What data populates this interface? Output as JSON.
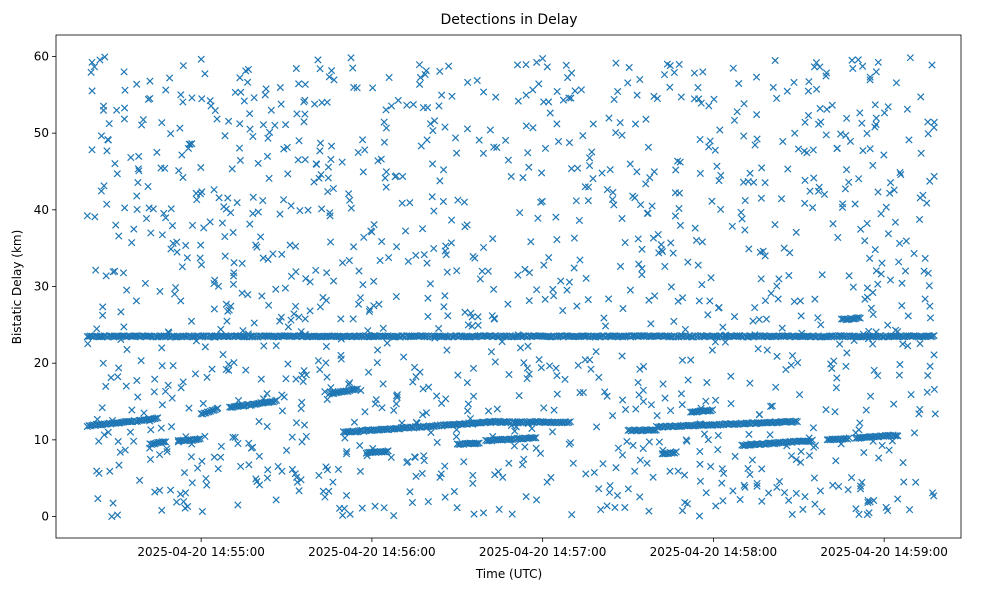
{
  "chart_data": {
    "type": "scatter",
    "title": "Detections in Delay",
    "xlabel": "Time (UTC)",
    "ylabel": "Bistatic Delay (km)",
    "marker": "x",
    "color": "#1f77b4",
    "grid": false,
    "legend": "none",
    "xlim": [
      "2025-04-20 14:54:09",
      "2025-04-20 14:59:27"
    ],
    "ylim": [
      -2.8,
      62.8
    ],
    "xticks": [
      "2025-04-20 14:55:00",
      "2025-04-20 14:56:00",
      "2025-04-20 14:57:00",
      "2025-04-20 14:58:00",
      "2025-04-20 14:59:00"
    ],
    "yticks": [
      0,
      10,
      20,
      30,
      40,
      50,
      60
    ],
    "x_start": "2025-04-20 14:54:20",
    "x_end": "2025-04-20 14:59:18",
    "tracks": [
      {
        "t0": "2025-04-20 14:54:20",
        "t1": "2025-04-20 14:59:18",
        "y0": 23.5,
        "y1": 23.5,
        "note": "constant delay line"
      },
      {
        "t0": "2025-04-20 14:54:20",
        "t1": "2025-04-20 14:54:45",
        "y0": 11.8,
        "y1": 12.8
      },
      {
        "t0": "2025-04-20 14:54:42",
        "t1": "2025-04-20 14:54:48",
        "y0": 9.4,
        "y1": 9.8
      },
      {
        "t0": "2025-04-20 14:54:52",
        "t1": "2025-04-20 14:55:00",
        "y0": 9.8,
        "y1": 10.1
      },
      {
        "t0": "2025-04-20 14:55:00",
        "t1": "2025-04-20 14:55:06",
        "y0": 13.4,
        "y1": 14.0
      },
      {
        "t0": "2025-04-20 14:55:10",
        "t1": "2025-04-20 14:55:27",
        "y0": 14.2,
        "y1": 15.1
      },
      {
        "t0": "2025-04-20 14:55:45",
        "t1": "2025-04-20 14:55:55",
        "y0": 16.0,
        "y1": 16.6
      },
      {
        "t0": "2025-04-20 14:55:50",
        "t1": "2025-04-20 14:56:45",
        "y0": 11.0,
        "y1": 12.4
      },
      {
        "t0": "2025-04-20 14:55:58",
        "t1": "2025-04-20 14:56:06",
        "y0": 8.3,
        "y1": 8.5
      },
      {
        "t0": "2025-04-20 14:56:30",
        "t1": "2025-04-20 14:56:38",
        "y0": 9.4,
        "y1": 9.6
      },
      {
        "t0": "2025-04-20 14:56:40",
        "t1": "2025-04-20 14:56:58",
        "y0": 9.9,
        "y1": 10.3
      },
      {
        "t0": "2025-04-20 14:56:45",
        "t1": "2025-04-20 14:57:10",
        "y0": 12.3,
        "y1": 12.3
      },
      {
        "t0": "2025-04-20 14:57:30",
        "t1": "2025-04-20 14:57:40",
        "y0": 11.2,
        "y1": 11.3
      },
      {
        "t0": "2025-04-20 14:57:40",
        "t1": "2025-04-20 14:58:30",
        "y0": 11.7,
        "y1": 12.4
      },
      {
        "t0": "2025-04-20 14:57:42",
        "t1": "2025-04-20 14:57:47",
        "y0": 8.2,
        "y1": 8.4
      },
      {
        "t0": "2025-04-20 14:57:52",
        "t1": "2025-04-20 14:58:00",
        "y0": 13.6,
        "y1": 13.9
      },
      {
        "t0": "2025-04-20 14:58:10",
        "t1": "2025-04-20 14:58:35",
        "y0": 9.3,
        "y1": 9.9
      },
      {
        "t0": "2025-04-20 14:58:40",
        "t1": "2025-04-20 14:58:48",
        "y0": 10.0,
        "y1": 10.2
      },
      {
        "t0": "2025-04-20 14:58:45",
        "t1": "2025-04-20 14:58:52",
        "y0": 25.7,
        "y1": 25.9
      },
      {
        "t0": "2025-04-20 14:58:50",
        "t1": "2025-04-20 14:58:56",
        "y0": 10.2,
        "y1": 10.4
      },
      {
        "t0": "2025-04-20 14:58:56",
        "t1": "2025-04-20 14:59:05",
        "y0": 10.4,
        "y1": 10.6
      }
    ],
    "clutter": {
      "y_range": [
        0,
        60
      ],
      "approx_count": 1300,
      "distribution": "uniform"
    }
  }
}
